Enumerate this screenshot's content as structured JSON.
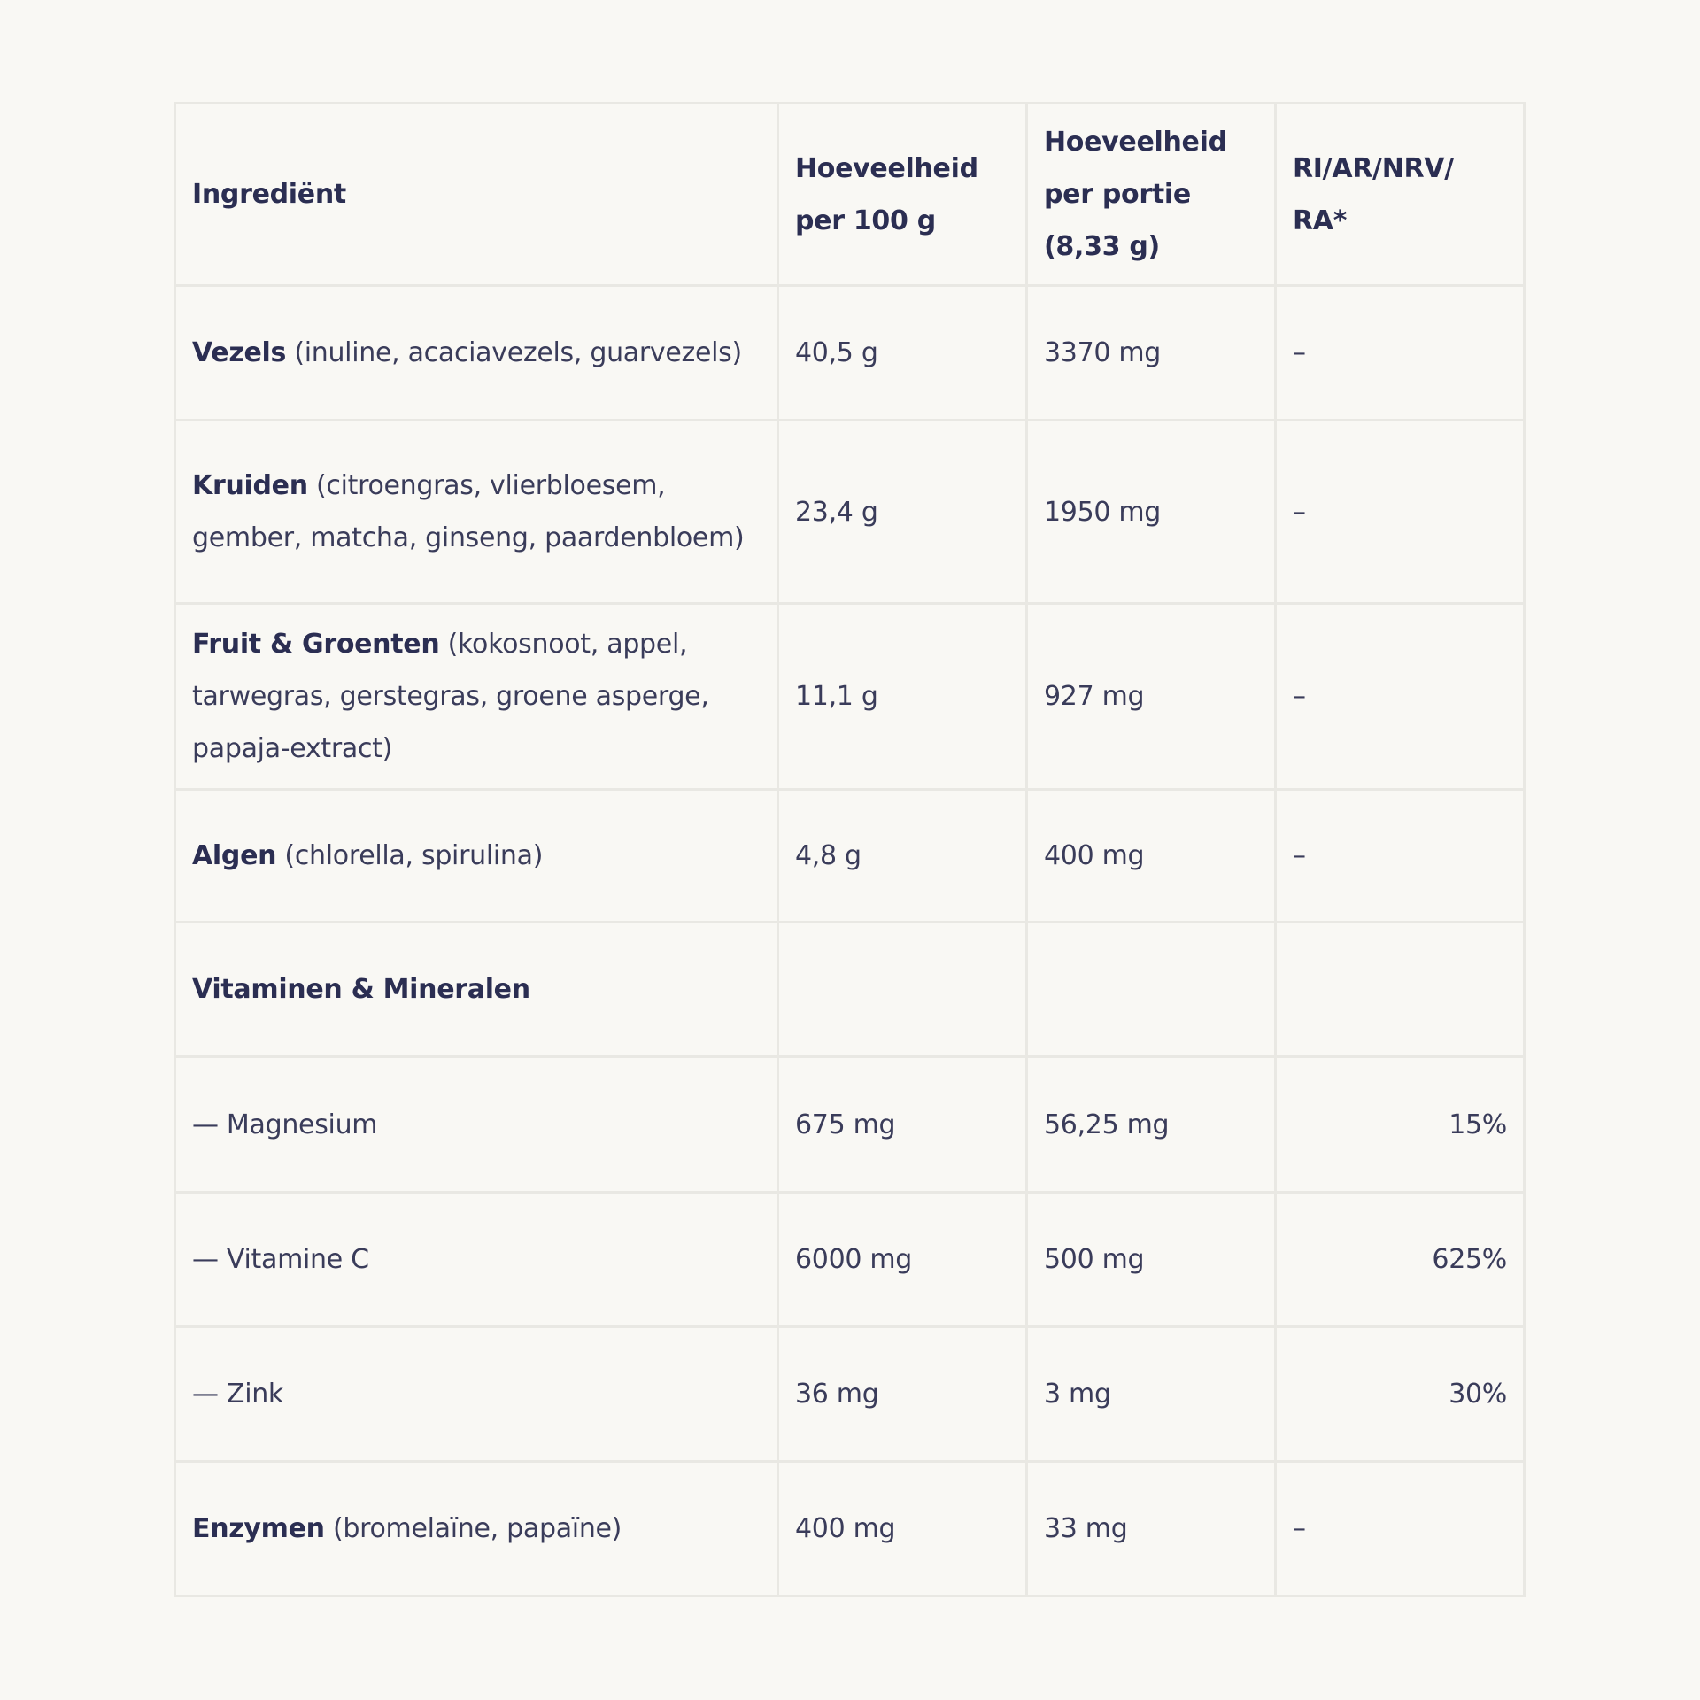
{
  "colors": {
    "text": "#2b2e52",
    "background": "#f9f8f4",
    "border": "#e9e8e3"
  },
  "headers": [
    "Ingrediënt",
    "Hoeveelheid per 100 g",
    "Hoeveelheid per portie (8,33 g)",
    "RI/AR/NRV/ RA*"
  ],
  "rows": [
    {
      "name": "Vezels",
      "detail": " (inuline, acaciavezels, guarvezels)",
      "per100": "40,5 g",
      "portion": "3370 mg",
      "ri": "–"
    },
    {
      "name": "Kruiden",
      "detail": " (citroengras, vlierbloesem, gember, matcha, ginseng, paardenbloem)",
      "per100": "23,4 g",
      "portion": "1950 mg",
      "ri": "–"
    },
    {
      "name": "Fruit & Groenten",
      "detail": " (kokosnoot, appel, tarwegras, gerstegras, groene asperge, papaja-extract)",
      "per100": "11,1 g",
      "portion": "927 mg",
      "ri": "–"
    },
    {
      "name": "Algen",
      "detail": " (chlorella, spirulina)",
      "per100": "4,8 g",
      "portion": "400 mg",
      "ri": "–"
    },
    {
      "name": "Vitaminen & Mineralen",
      "detail": "",
      "per100": "",
      "portion": "",
      "ri": ""
    },
    {
      "name": "",
      "detail": "— Magnesium",
      "per100": "675 mg",
      "portion": "56,25 mg",
      "ri": "15%"
    },
    {
      "name": "",
      "detail": "— Vitamine C",
      "per100": "6000 mg",
      "portion": "500 mg",
      "ri": "625%"
    },
    {
      "name": "",
      "detail": "— Zink",
      "per100": "36 mg",
      "portion": "3 mg",
      "ri": "30%"
    },
    {
      "name": "Enzymen",
      "detail": " (bromelaïne, papaïne)",
      "per100": "400 mg",
      "portion": "33 mg",
      "ri": "–"
    }
  ]
}
